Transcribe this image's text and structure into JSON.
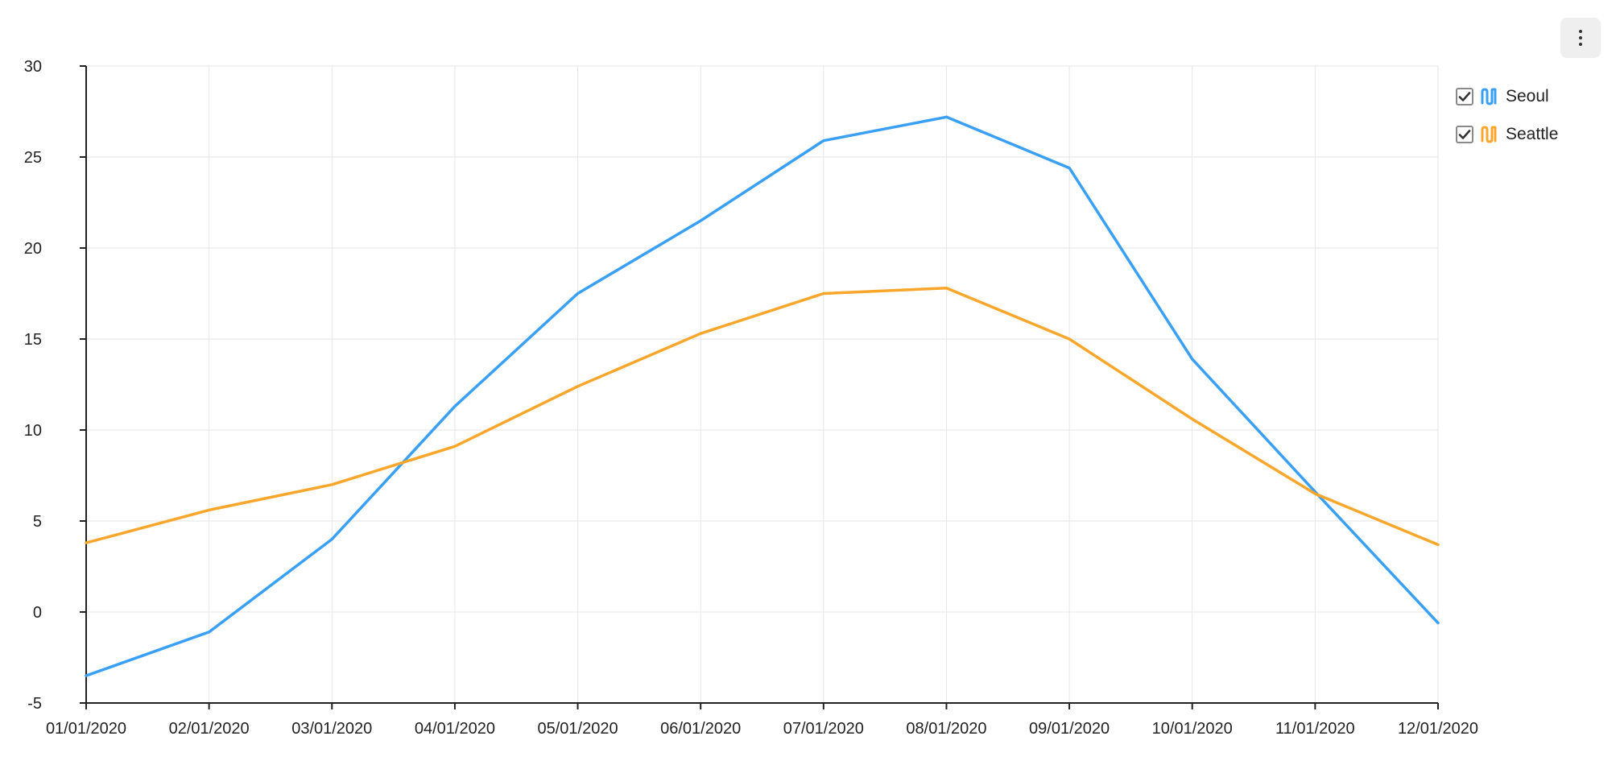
{
  "chart_data": {
    "type": "line",
    "x": [
      "01/01/2020",
      "02/01/2020",
      "03/01/2020",
      "04/01/2020",
      "05/01/2020",
      "06/01/2020",
      "07/01/2020",
      "08/01/2020",
      "09/01/2020",
      "10/01/2020",
      "11/01/2020",
      "12/01/2020"
    ],
    "ylim": [
      -5,
      30
    ],
    "yticks": [
      -5,
      0,
      5,
      10,
      15,
      20,
      25,
      30
    ],
    "grid": true,
    "legend_position": "top-right",
    "series": [
      {
        "name": "Seoul",
        "color": "#3aa0f5",
        "values": [
          -3.5,
          -1.1,
          4.0,
          11.3,
          17.5,
          21.5,
          25.9,
          27.2,
          24.4,
          13.9,
          6.6,
          -0.6
        ]
      },
      {
        "name": "Seattle",
        "color": "#f9a72c",
        "values": [
          3.8,
          5.6,
          7.0,
          9.1,
          12.4,
          15.3,
          17.5,
          17.8,
          15.0,
          10.6,
          6.5,
          3.7
        ]
      }
    ]
  },
  "legend": {
    "items": [
      {
        "label": "Seoul",
        "checked": true,
        "icon": "series-line-icon",
        "color": "#3aa0f5"
      },
      {
        "label": "Seattle",
        "checked": true,
        "icon": "series-line-icon",
        "color": "#f9a72c"
      }
    ]
  },
  "toolbar": {
    "menu_icon": "more-vertical-icon"
  }
}
